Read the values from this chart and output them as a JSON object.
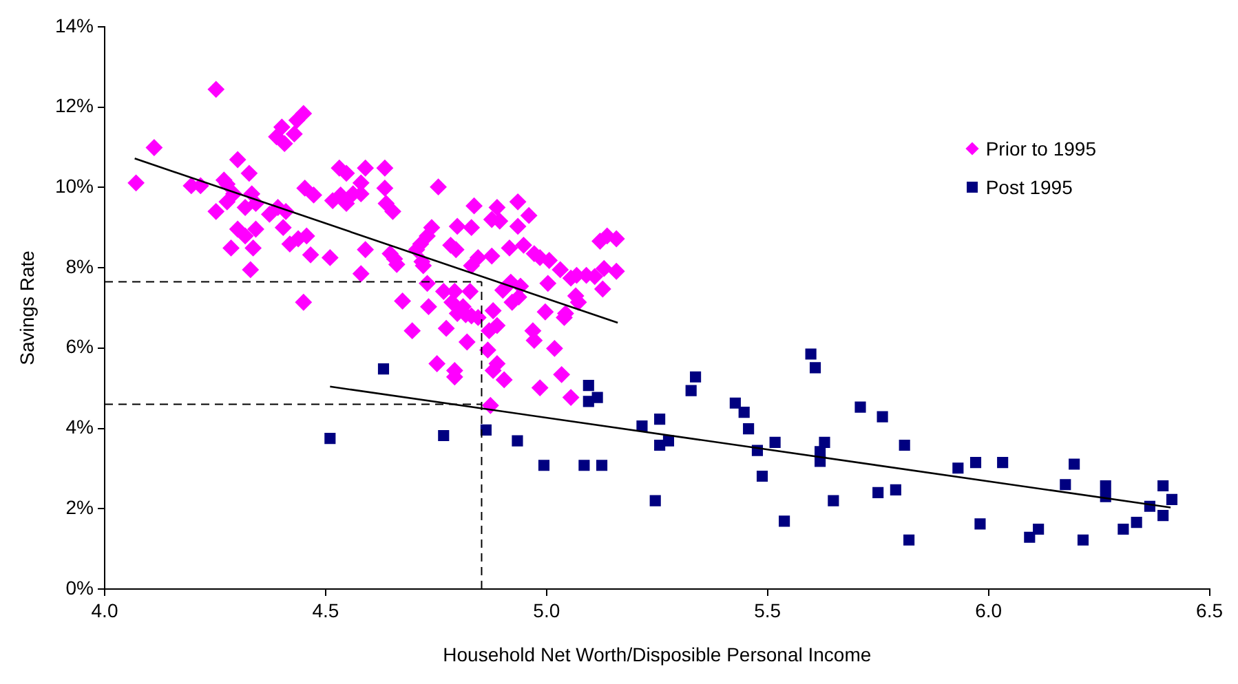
{
  "chart_data": {
    "type": "scatter",
    "xlabel": "Household Net Worth/Disposible Personal Income",
    "ylabel": "Savings Rate",
    "xlim": [
      4,
      6.5
    ],
    "ylim": [
      0,
      14
    ],
    "xticks": [
      {
        "value": 4,
        "label": "4.0"
      },
      {
        "value": 4.5,
        "label": "4.5"
      },
      {
        "value": 5,
        "label": "5.0"
      },
      {
        "value": 5.5,
        "label": "5.5"
      },
      {
        "value": 6,
        "label": "6.0"
      },
      {
        "value": 6.5,
        "label": "6.5"
      }
    ],
    "yticks": [
      {
        "value": 0,
        "label": "0%"
      },
      {
        "value": 2,
        "label": "2%"
      },
      {
        "value": 4,
        "label": "4%"
      },
      {
        "value": 6,
        "label": "6%"
      },
      {
        "value": 8,
        "label": "8%"
      },
      {
        "value": 10,
        "label": "10%"
      },
      {
        "value": 12,
        "label": "12%"
      },
      {
        "value": 14,
        "label": "14%"
      }
    ],
    "grid": false,
    "legend": "top right",
    "series": [
      {
        "name": "Prior to 1995",
        "type": "scatter",
        "marker": "diamond",
        "color": "#ff00ff",
        "x": [
          4.071,
          4.112,
          4.252,
          4.196,
          4.217,
          4.252,
          4.27,
          4.277,
          4.277,
          4.292,
          4.301,
          4.327,
          4.333,
          4.318,
          4.342,
          4.301,
          4.318,
          4.342,
          4.286,
          4.336,
          4.33,
          4.373,
          4.392,
          4.41,
          4.404,
          4.389,
          4.401,
          4.407,
          4.429,
          4.435,
          4.45,
          4.453,
          4.473,
          4.419,
          4.438,
          4.457,
          4.466,
          4.45,
          4.51,
          4.516,
          4.534,
          4.547,
          4.531,
          4.547,
          4.562,
          4.58,
          4.58,
          4.59,
          4.59,
          4.58,
          4.634,
          4.634,
          4.637,
          4.652,
          4.646,
          4.656,
          4.661,
          4.674,
          4.755,
          4.836,
          4.888,
          4.935,
          4.96,
          4.876,
          4.894,
          4.798,
          4.83,
          4.935,
          4.74,
          4.73,
          4.715,
          4.706,
          4.783,
          4.795,
          4.718,
          4.721,
          4.845,
          4.83,
          4.876,
          4.916,
          4.948,
          4.972,
          4.985,
          5.006,
          5.031,
          5.055,
          5.068,
          5.09,
          5.109,
          5.13,
          5.127,
          5.158,
          5.121,
          5.137,
          5.158,
          4.73,
          4.767,
          4.792,
          4.827,
          4.786,
          4.733,
          4.811,
          4.798,
          4.817,
          4.83,
          4.845,
          4.879,
          4.901,
          4.922,
          4.937,
          4.919,
          4.941,
          5.003,
          5.066,
          5.072,
          4.997,
          5.043,
          5.04,
          4.888,
          4.87,
          4.773,
          4.696,
          4.969,
          4.972,
          4.82,
          4.867,
          5.018,
          4.752,
          4.792,
          4.792,
          4.888,
          4.879,
          4.904,
          4.985,
          5.034,
          5.055,
          4.873
        ],
        "values": [
          10.11,
          10.99,
          12.44,
          10.04,
          10.04,
          9.4,
          10.18,
          10.08,
          9.64,
          9.84,
          10.69,
          10.35,
          9.84,
          9.5,
          9.6,
          8.96,
          8.79,
          8.96,
          8.49,
          8.49,
          7.95,
          9.33,
          9.5,
          9.4,
          9.0,
          11.26,
          11.5,
          11.09,
          11.33,
          11.67,
          11.84,
          9.98,
          9.81,
          8.59,
          8.72,
          8.79,
          8.32,
          7.14,
          8.25,
          9.67,
          9.81,
          9.6,
          10.48,
          10.35,
          9.84,
          9.84,
          10.11,
          10.48,
          8.45,
          7.85,
          10.48,
          9.98,
          9.6,
          9.4,
          8.35,
          8.22,
          8.08,
          7.17,
          10.01,
          9.54,
          9.5,
          9.64,
          9.3,
          9.2,
          9.16,
          9.03,
          9.0,
          9.03,
          9.0,
          8.79,
          8.59,
          8.45,
          8.56,
          8.45,
          8.15,
          8.05,
          8.25,
          8.05,
          8.29,
          8.49,
          8.56,
          8.35,
          8.25,
          8.18,
          7.95,
          7.74,
          7.81,
          7.81,
          7.78,
          7.98,
          7.47,
          7.91,
          8.66,
          8.79,
          8.72,
          7.61,
          7.41,
          7.41,
          7.41,
          7.14,
          7.03,
          7.03,
          6.86,
          6.83,
          6.8,
          6.76,
          6.93,
          7.44,
          7.14,
          7.27,
          7.64,
          7.54,
          7.61,
          7.3,
          7.14,
          6.9,
          6.86,
          6.76,
          6.56,
          6.43,
          6.49,
          6.43,
          6.43,
          6.19,
          6.15,
          5.95,
          5.99,
          5.61,
          5.44,
          5.28,
          5.61,
          5.44,
          5.21,
          5.01,
          5.34,
          4.77,
          4.57
        ]
      },
      {
        "name": "Post 1995",
        "type": "scatter",
        "marker": "square",
        "color": "#000080",
        "x": [
          4.51,
          4.631,
          4.767,
          4.863,
          4.934,
          4.994,
          5.085,
          5.125,
          5.095,
          5.095,
          5.115,
          5.216,
          5.256,
          5.256,
          5.276,
          5.246,
          5.327,
          5.337,
          5.427,
          5.598,
          5.608,
          5.447,
          5.457,
          5.477,
          5.517,
          5.488,
          5.538,
          5.629,
          5.619,
          5.619,
          5.649,
          5.71,
          5.76,
          5.81,
          5.75,
          5.79,
          5.82,
          5.931,
          5.971,
          6.032,
          5.981,
          6.093,
          6.113,
          6.194,
          6.174,
          6.214,
          6.265,
          6.265,
          6.305,
          6.335,
          6.365,
          6.395,
          6.415,
          6.395
        ],
        "values": [
          3.75,
          5.48,
          3.82,
          3.96,
          3.69,
          3.08,
          3.08,
          3.08,
          5.07,
          4.67,
          4.77,
          4.06,
          4.23,
          3.58,
          3.69,
          2.2,
          4.94,
          5.28,
          4.63,
          5.85,
          5.51,
          4.4,
          3.99,
          3.45,
          3.65,
          2.81,
          1.69,
          3.65,
          3.42,
          3.18,
          2.2,
          4.53,
          4.29,
          3.58,
          2.4,
          2.47,
          1.22,
          3.01,
          3.15,
          3.15,
          1.62,
          1.29,
          1.49,
          3.11,
          2.6,
          1.22,
          2.57,
          2.3,
          1.49,
          1.66,
          2.06,
          2.57,
          2.23,
          1.83
        ]
      },
      {
        "type": "line",
        "marker": "none",
        "line_style": "solid",
        "color": "#000000",
        "x": [
          4.068,
          5.161
        ],
        "values": [
          10.72,
          6.63
        ]
      },
      {
        "type": "line",
        "marker": "none",
        "line_style": "solid",
        "color": "#000000",
        "x": [
          4.51,
          6.412
        ],
        "values": [
          5.04,
          2.03
        ]
      }
    ],
    "ref_lines": [
      {
        "axis": "x",
        "value": 4.853,
        "color": "#000000",
        "line_style": "dashed"
      },
      {
        "axis": "y",
        "value": 7.65,
        "color": "#000000",
        "line_style": "dashed"
      },
      {
        "axis": "y",
        "value": 4.6,
        "color": "#000000",
        "line_style": "dashed"
      }
    ]
  }
}
